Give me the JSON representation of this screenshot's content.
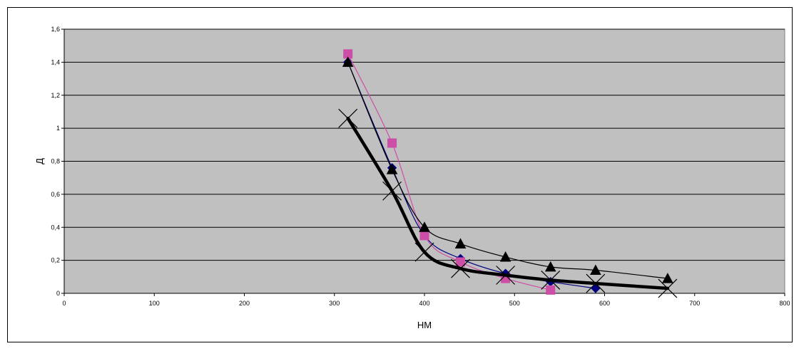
{
  "chart_data": {
    "type": "line",
    "title": "",
    "xlabel": "HM",
    "ylabel": "Д",
    "xlim": [
      0,
      800
    ],
    "ylim": [
      0,
      1.6
    ],
    "x_ticks": [
      "0",
      "100",
      "200",
      "300",
      "400",
      "500",
      "600",
      "700",
      "800"
    ],
    "y_ticks": [
      "0",
      "0,2",
      "0,4",
      "0,6",
      "0,8",
      "1",
      "1,2",
      "1,4",
      "1,6"
    ],
    "grid": "horizontal",
    "legend": "none",
    "plot_background": "#c0c0c0",
    "series": [
      {
        "marker": "diamond",
        "color": "#000080",
        "line_weight": "thin",
        "x": [
          315,
          364,
          400,
          440,
          490,
          540,
          590
        ],
        "y": [
          1.4,
          0.76,
          0.35,
          0.21,
          0.12,
          0.07,
          0.03
        ]
      },
      {
        "marker": "square",
        "color": "#cc4ea6",
        "line_weight": "thin",
        "x": [
          315,
          364,
          400,
          440,
          490,
          540
        ],
        "y": [
          1.45,
          0.91,
          0.35,
          0.19,
          0.09,
          0.02
        ]
      },
      {
        "marker": "triangle",
        "color": "#000000",
        "line_weight": "thin",
        "x": [
          315,
          364,
          400,
          440,
          490,
          540,
          590,
          670
        ],
        "y": [
          1.4,
          0.75,
          0.4,
          0.3,
          0.22,
          0.16,
          0.14,
          0.09
        ]
      },
      {
        "marker": "x",
        "color": "#000000",
        "line_weight": "thick",
        "x": [
          315,
          364,
          400,
          440,
          490,
          540,
          590,
          670
        ],
        "y": [
          1.06,
          0.62,
          0.25,
          0.15,
          0.11,
          0.08,
          0.06,
          0.03
        ]
      }
    ]
  }
}
